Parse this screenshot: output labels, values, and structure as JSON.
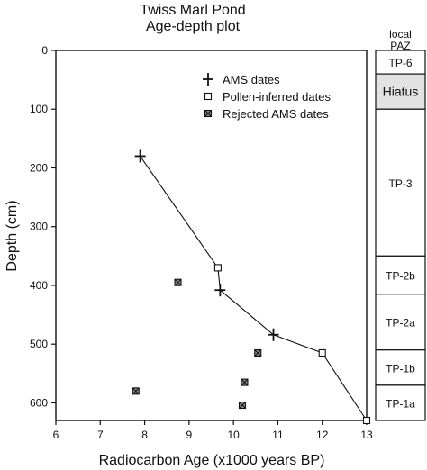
{
  "chart_data": {
    "type": "scatter",
    "title": "Twiss Marl Pond",
    "subtitle": "Age-depth plot",
    "xlabel": "Radiocarbon Age (x1000 years BP)",
    "ylabel": "Depth (cm)",
    "xlim": [
      6,
      13
    ],
    "ylim": [
      0,
      630
    ],
    "y_inverted": true,
    "xticks": [
      6,
      7,
      8,
      9,
      10,
      11,
      12,
      13
    ],
    "yticks": [
      0,
      100,
      200,
      300,
      400,
      500,
      600
    ],
    "grid": false,
    "legend_position": "top-right",
    "age_depth_line": [
      {
        "x": 7.9,
        "y": 180
      },
      {
        "x": 9.65,
        "y": 370
      },
      {
        "x": 9.7,
        "y": 408
      },
      {
        "x": 10.9,
        "y": 484
      },
      {
        "x": 12.0,
        "y": 515
      },
      {
        "x": 13.0,
        "y": 630
      }
    ],
    "series": [
      {
        "name": "AMS dates",
        "marker": "plus",
        "points": [
          {
            "x": 7.9,
            "y": 180
          },
          {
            "x": 9.7,
            "y": 408
          },
          {
            "x": 10.9,
            "y": 484
          }
        ]
      },
      {
        "name": "Pollen-inferred dates",
        "marker": "open-square",
        "points": [
          {
            "x": 9.65,
            "y": 370
          },
          {
            "x": 12.0,
            "y": 515
          },
          {
            "x": 13.0,
            "y": 630
          }
        ]
      },
      {
        "name": "Rejected AMS dates",
        "marker": "crossed-square",
        "points": [
          {
            "x": 8.75,
            "y": 395
          },
          {
            "x": 10.55,
            "y": 515
          },
          {
            "x": 10.25,
            "y": 565
          },
          {
            "x": 7.8,
            "y": 580
          },
          {
            "x": 10.2,
            "y": 604
          }
        ]
      }
    ],
    "paz": {
      "header_line1": "local",
      "header_line2": "PAZ",
      "zones": [
        {
          "label": "TP-6",
          "top": 0,
          "bottom": 40,
          "shaded": false
        },
        {
          "label": "Hiatus",
          "top": 40,
          "bottom": 100,
          "shaded": true
        },
        {
          "label": "TP-3",
          "top": 100,
          "bottom": 350,
          "shaded": false
        },
        {
          "label": "TP-2b",
          "top": 350,
          "bottom": 415,
          "shaded": false
        },
        {
          "label": "TP-2a",
          "top": 415,
          "bottom": 510,
          "shaded": false
        },
        {
          "label": "TP-1b",
          "top": 510,
          "bottom": 570,
          "shaded": false
        },
        {
          "label": "TP-1a",
          "top": 570,
          "bottom": 630,
          "shaded": false
        }
      ]
    },
    "colors": {
      "ink": "#111111",
      "hiatus_fill": "#e2e2e2"
    }
  }
}
